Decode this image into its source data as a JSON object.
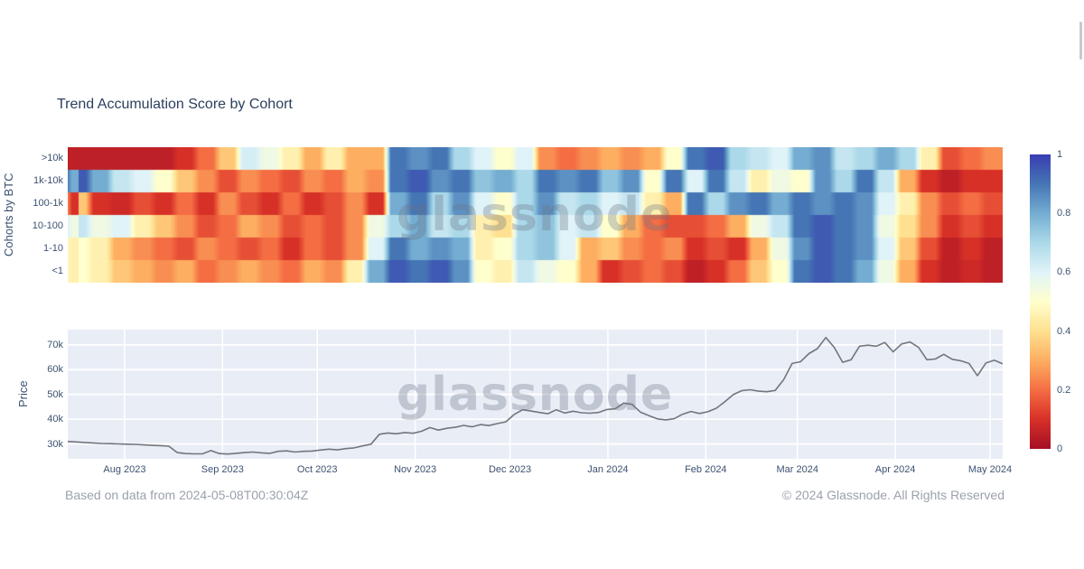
{
  "title": "Trend Accumulation Score by Cohort",
  "watermark": "glassnode",
  "footer": {
    "left": "Based on data from 2024-05-08T00:30:04Z",
    "right": "© 2024 Glassnode. All Rights Reserved"
  },
  "colors": {
    "title": "#2b3f5e",
    "tick": "#3c5270",
    "footer_gray": "#9ba1ac",
    "price_line": "#72767c",
    "plot_bg": "#e9edf6",
    "gridline": "#ffffff"
  },
  "chart_data": [
    {
      "type": "heatmap",
      "title": "Trend Accumulation Score by Cohort",
      "ylabel": "Cohorts by BTC",
      "rows": [
        ">10k",
        "1k-10k",
        "100-1k",
        "10-100",
        "1-10",
        "<1"
      ],
      "zmin": 0,
      "zmax": 1,
      "colorbar_ticks": [
        1,
        0.8,
        0.6,
        0.4,
        0.2,
        0
      ],
      "colorscale": [
        [
          0.0,
          [
            165,
            15,
            38
          ]
        ],
        [
          0.1,
          [
            215,
            48,
            39
          ]
        ],
        [
          0.2,
          [
            244,
            109,
            67
          ]
        ],
        [
          0.3,
          [
            253,
            174,
            97
          ]
        ],
        [
          0.4,
          [
            254,
            224,
            144
          ]
        ],
        [
          0.5,
          [
            255,
            255,
            205
          ]
        ],
        [
          0.6,
          [
            224,
            243,
            248
          ]
        ],
        [
          0.7,
          [
            171,
            217,
            233
          ]
        ],
        [
          0.8,
          [
            116,
            173,
            209
          ]
        ],
        [
          0.9,
          [
            69,
            117,
            180
          ]
        ],
        [
          1.0,
          [
            57,
            62,
            177
          ]
        ]
      ],
      "series": [
        {
          "name": ">10k",
          "values": [
            0.05,
            0.05,
            0.05,
            0.05,
            0.05,
            0.1,
            0.2,
            0.35,
            0.62,
            0.55,
            0.45,
            0.3,
            0.45,
            0.3,
            0.3,
            0.9,
            0.85,
            0.9,
            0.7,
            0.6,
            0.5,
            0.6,
            0.25,
            0.2,
            0.25,
            0.3,
            0.25,
            0.3,
            0.5,
            0.9,
            0.95,
            0.7,
            0.65,
            0.6,
            0.8,
            0.85,
            0.65,
            0.7,
            0.8,
            0.7,
            0.45,
            0.15,
            0.2,
            0.25
          ]
        },
        {
          "name": "1k-10k",
          "values": [
            0.95,
            0.8,
            0.65,
            0.6,
            0.5,
            0.35,
            0.25,
            0.15,
            0.25,
            0.2,
            0.15,
            0.25,
            0.2,
            0.3,
            0.25,
            0.9,
            0.95,
            0.85,
            0.9,
            0.75,
            0.8,
            0.7,
            0.9,
            0.85,
            0.9,
            0.75,
            0.85,
            0.5,
            0.9,
            0.6,
            0.9,
            0.65,
            0.45,
            0.55,
            0.5,
            0.85,
            0.7,
            0.9,
            0.65,
            0.3,
            0.1,
            0.05,
            0.1,
            0.1
          ]
        },
        {
          "name": "100-1k",
          "values": [
            0.35,
            0.1,
            0.08,
            0.15,
            0.1,
            0.2,
            0.1,
            0.25,
            0.15,
            0.1,
            0.2,
            0.1,
            0.15,
            0.25,
            0.1,
            0.8,
            0.9,
            0.7,
            0.85,
            0.6,
            0.5,
            0.7,
            0.85,
            0.65,
            0.7,
            0.6,
            0.65,
            0.45,
            0.3,
            0.9,
            0.7,
            0.85,
            0.9,
            0.8,
            0.9,
            0.85,
            0.9,
            0.85,
            0.6,
            0.45,
            0.25,
            0.15,
            0.2,
            0.15
          ]
        },
        {
          "name": "10-100",
          "values": [
            0.65,
            0.55,
            0.6,
            0.45,
            0.35,
            0.25,
            0.15,
            0.2,
            0.3,
            0.25,
            0.15,
            0.2,
            0.15,
            0.25,
            0.55,
            0.7,
            0.8,
            0.65,
            0.7,
            0.45,
            0.4,
            0.7,
            0.75,
            0.6,
            0.65,
            0.5,
            0.3,
            0.2,
            0.15,
            0.15,
            0.2,
            0.3,
            0.55,
            0.65,
            0.9,
            0.95,
            0.9,
            0.85,
            0.55,
            0.4,
            0.25,
            0.1,
            0.15,
            0.1
          ]
        },
        {
          "name": "1-10",
          "values": [
            0.5,
            0.45,
            0.3,
            0.25,
            0.2,
            0.15,
            0.25,
            0.2,
            0.15,
            0.2,
            0.1,
            0.2,
            0.15,
            0.25,
            0.6,
            0.9,
            0.8,
            0.85,
            0.8,
            0.45,
            0.5,
            0.7,
            0.75,
            0.6,
            0.3,
            0.35,
            0.25,
            0.2,
            0.25,
            0.1,
            0.15,
            0.1,
            0.3,
            0.55,
            0.85,
            0.95,
            0.9,
            0.85,
            0.6,
            0.35,
            0.15,
            0.05,
            0.1,
            0.05
          ]
        },
        {
          "name": "<1",
          "values": [
            0.5,
            0.45,
            0.35,
            0.3,
            0.25,
            0.3,
            0.2,
            0.25,
            0.3,
            0.25,
            0.2,
            0.3,
            0.25,
            0.45,
            0.8,
            0.95,
            0.9,
            0.95,
            0.85,
            0.5,
            0.45,
            0.65,
            0.55,
            0.5,
            0.3,
            0.1,
            0.15,
            0.2,
            0.15,
            0.05,
            0.1,
            0.2,
            0.35,
            0.5,
            0.9,
            0.95,
            0.9,
            0.8,
            0.55,
            0.3,
            0.1,
            0.05,
            0.08,
            0.05
          ]
        }
      ]
    },
    {
      "type": "line",
      "ylabel": "Price",
      "y_ticks": [
        {
          "label": "70k",
          "value": 70
        },
        {
          "label": "60k",
          "value": 60
        },
        {
          "label": "50k",
          "value": 50
        },
        {
          "label": "40k",
          "value": 40
        },
        {
          "label": "30k",
          "value": 30
        }
      ],
      "span_days": 296,
      "x_ticks": [
        {
          "label": "Aug 2023",
          "day": 18
        },
        {
          "label": "Sep 2023",
          "day": 49
        },
        {
          "label": "Oct 2023",
          "day": 79
        },
        {
          "label": "Nov 2023",
          "day": 110
        },
        {
          "label": "Dec 2023",
          "day": 140
        },
        {
          "label": "Jan 2024",
          "day": 171
        },
        {
          "label": "Feb 2024",
          "day": 202
        },
        {
          "label": "Mar 2024",
          "day": 231
        },
        {
          "label": "Apr 2024",
          "day": 262
        },
        {
          "label": "May 2024",
          "day": 292
        }
      ],
      "values_k": [
        31.0,
        30.8,
        30.6,
        30.4,
        30.2,
        30.1,
        30.0,
        29.9,
        29.8,
        29.6,
        29.4,
        29.3,
        29.1,
        26.5,
        26.1,
        26.0,
        26.0,
        27.3,
        26.1,
        25.9,
        26.2,
        26.5,
        26.7,
        26.4,
        26.2,
        27.0,
        27.2,
        26.7,
        27.0,
        27.1,
        27.5,
        27.9,
        27.6,
        28.1,
        28.4,
        29.2,
        29.9,
        33.9,
        34.4,
        34.1,
        34.6,
        34.3,
        35.1,
        36.6,
        35.6,
        36.3,
        36.7,
        37.5,
        36.9,
        37.8,
        37.4,
        38.2,
        38.9,
        41.9,
        43.8,
        43.3,
        42.7,
        42.2,
        43.8,
        42.5,
        43.2,
        42.6,
        42.4,
        42.7,
        43.9,
        44.2,
        46.5,
        46.0,
        42.8,
        41.4,
        40.1,
        39.7,
        40.2,
        42.0,
        43.1,
        42.3,
        43.0,
        44.4,
        47.0,
        49.9,
        51.5,
        51.9,
        51.3,
        51.1,
        51.6,
        56.0,
        62.5,
        63.2,
        66.5,
        68.5,
        73.0,
        69.0,
        63.0,
        64.0,
        69.5,
        69.9,
        69.5,
        71.0,
        67.2,
        70.4,
        71.2,
        69.0,
        64.0,
        64.3,
        66.2,
        64.2,
        63.6,
        62.5,
        57.6,
        62.7,
        63.8,
        62.4
      ]
    }
  ]
}
